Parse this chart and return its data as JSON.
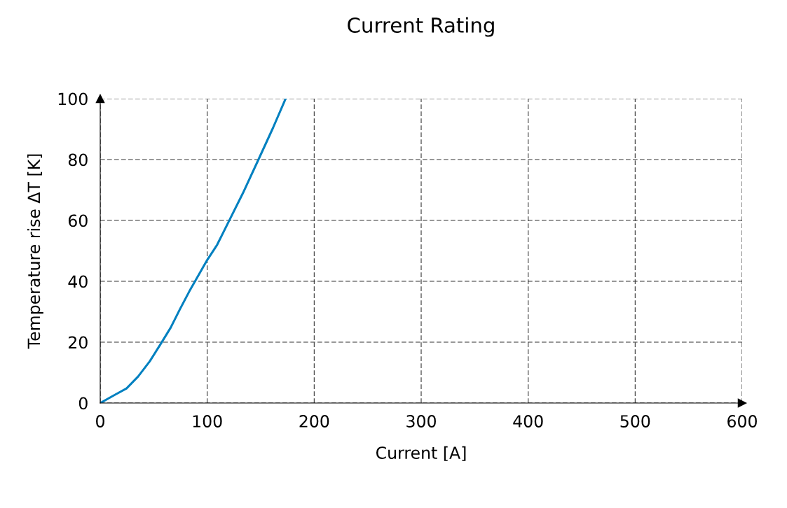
{
  "chart_data": {
    "type": "line",
    "title": "Current Rating",
    "xlabel": "Current [A]",
    "ylabel": "Temperature rise ΔT [K]",
    "x": [
      0,
      13.7,
      24.6,
      35.4,
      46.3,
      57.2,
      65.9,
      74.6,
      83.3,
      100,
      109.3,
      120.2,
      133.3,
      147.4,
      161.5,
      173.3
    ],
    "series": [
      {
        "color": "#0080c0",
        "values": [
          0,
          2.7,
          4.8,
          8.7,
          13.7,
          19.8,
          24.8,
          30.9,
          36.7,
          47.0,
          52.0,
          59.7,
          68.9,
          79.6,
          90.4,
          100
        ]
      }
    ],
    "xlim": [
      0,
      600
    ],
    "ylim": [
      0,
      100
    ],
    "xticks": [
      0,
      100,
      200,
      300,
      400,
      500,
      600
    ],
    "yticks": [
      0,
      20,
      40,
      60,
      80,
      100
    ],
    "grid": true,
    "marker": "none",
    "line_style": "solid"
  }
}
